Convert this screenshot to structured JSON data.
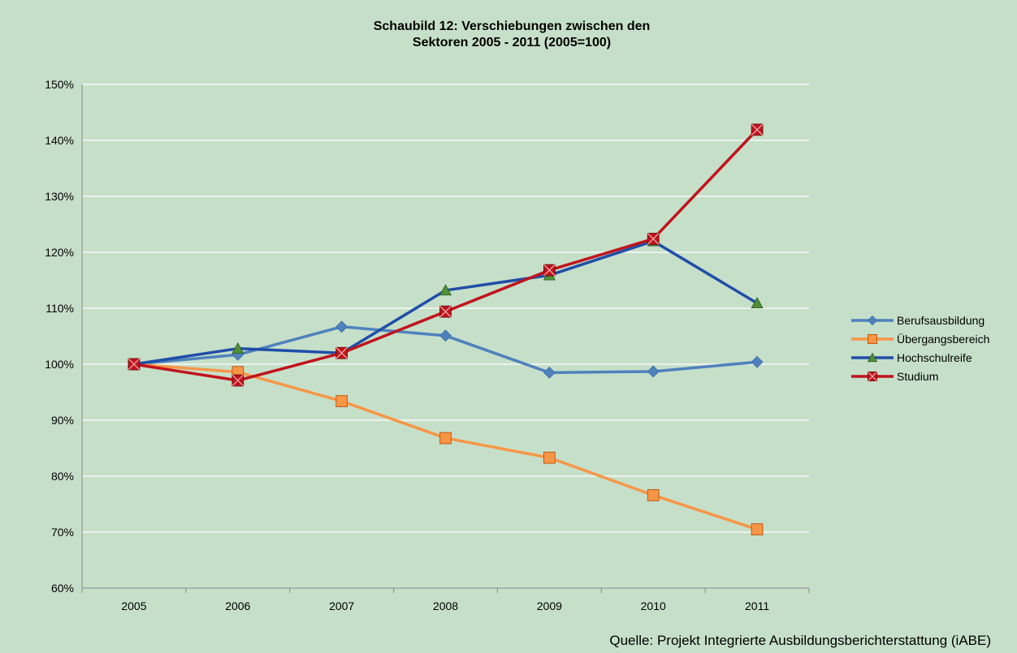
{
  "chart_data": {
    "type": "line",
    "title_lines": [
      "Schaubild 12:  Verschiebungen zwischen den",
      "Sektoren 2005 - 2011 (2005=100)"
    ],
    "categories": [
      "2005",
      "2006",
      "2007",
      "2008",
      "2009",
      "2010",
      "2011"
    ],
    "ylim": [
      60,
      150
    ],
    "yticks": [
      60,
      70,
      80,
      90,
      100,
      110,
      120,
      130,
      140,
      150
    ],
    "ytick_labels": [
      "60%",
      "70%",
      "80%",
      "90%",
      "100%",
      "110%",
      "120%",
      "130%",
      "140%",
      "150%"
    ],
    "y_unit": "%",
    "grid": "horizontal",
    "legend_position": "right",
    "series": [
      {
        "name": "Berufsausbildung",
        "color": "#4f81bd",
        "marker": "diamond",
        "marker_color": "#4f81bd",
        "values": [
          100,
          101.7,
          106.7,
          105.1,
          98.5,
          98.7,
          100.4
        ]
      },
      {
        "name": "Übergangsbereich",
        "color": "#f79646",
        "marker": "square",
        "marker_color": "#f79646",
        "values": [
          100,
          98.6,
          93.4,
          86.8,
          83.3,
          76.6,
          70.5
        ]
      },
      {
        "name": "Hochschulreife",
        "color": "#1f4ea8",
        "marker": "triangle",
        "marker_color": "#4f8f3a",
        "values": [
          100,
          102.8,
          102.0,
          113.2,
          115.9,
          122.0,
          110.9
        ]
      },
      {
        "name": "Studium",
        "color": "#c0141c",
        "marker": "x-square",
        "marker_color": "#c0141c",
        "values": [
          100,
          97.1,
          102.0,
          109.4,
          116.8,
          122.4,
          141.9
        ]
      }
    ],
    "source": "Quelle: Projekt Integrierte Ausbildungsberichterstattung  (iABE)"
  }
}
